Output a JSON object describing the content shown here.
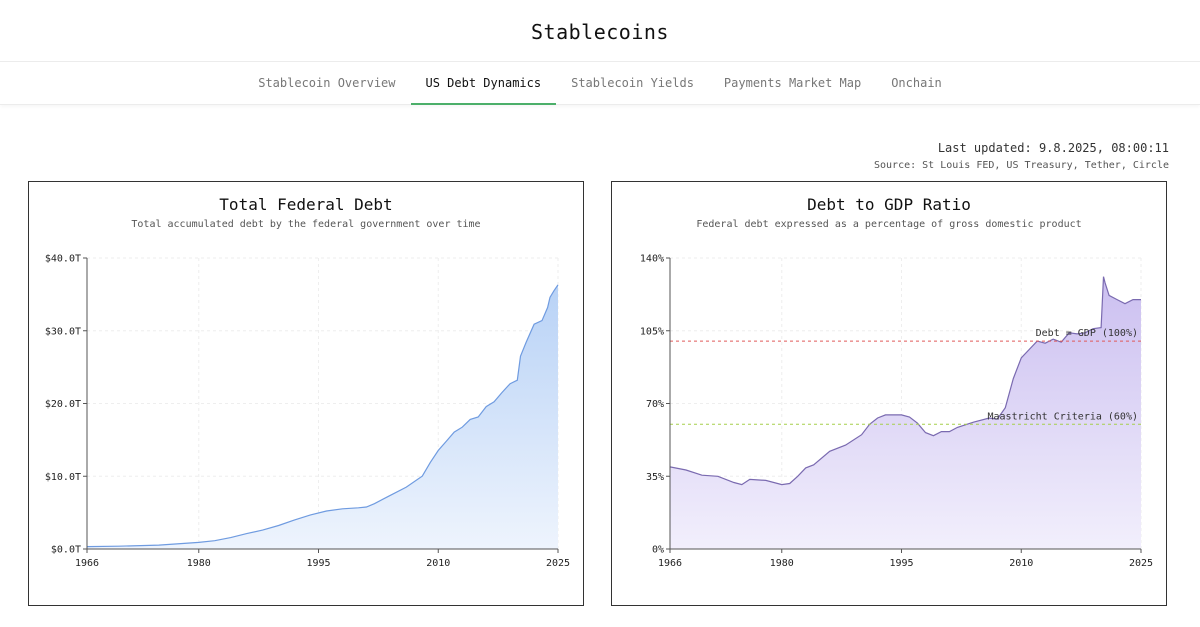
{
  "header": {
    "title": "Stablecoins"
  },
  "nav": {
    "tabs": [
      {
        "label": "Stablecoin Overview",
        "active": false
      },
      {
        "label": "US Debt Dynamics",
        "active": true
      },
      {
        "label": "Stablecoin Yields",
        "active": false
      },
      {
        "label": "Payments Market Map",
        "active": false
      },
      {
        "label": "Onchain",
        "active": false
      }
    ]
  },
  "meta": {
    "last_updated": "Last updated: 9.8.2025, 08:00:11",
    "source": "Source: St Louis FED, US Treasury, Tether, Circle"
  },
  "colors": {
    "accent_tab": "#4caf6a",
    "debt_line": "#6f9be0",
    "debt_fill_top": "#b8d2f6",
    "debt_fill_bottom": "#eef4fd",
    "ratio_line": "#7a6ab0",
    "ratio_fill_top": "#cbbff0",
    "ratio_fill_bottom": "#f2effc",
    "ref_debt_gdp": "#e05a5a",
    "ref_maastricht": "#a6cf4a"
  },
  "chart_data": [
    {
      "type": "area",
      "title": "Total Federal Debt",
      "subtitle": "Total accumulated debt by the federal government over time",
      "xlabel": "",
      "ylabel": "",
      "xlim": [
        1966,
        2025
      ],
      "ylim": [
        0,
        40
      ],
      "x_ticks": [
        "1966",
        "1980",
        "1995",
        "2010",
        "2025"
      ],
      "y_ticks": [
        "$0.0T",
        "$10.0T",
        "$20.0T",
        "$30.0T",
        "$40.0T"
      ],
      "grid": true,
      "series": [
        {
          "x": [
            1966,
            1970,
            1975,
            1980,
            1982,
            1984,
            1986,
            1988,
            1990,
            1992,
            1994,
            1996,
            1998,
            2000,
            2001,
            2002,
            2004,
            2006,
            2008,
            2009,
            2010,
            2011,
            2012,
            2013,
            2014,
            2015,
            2016,
            2017,
            2018,
            2019,
            2019.9,
            2020.3,
            2021,
            2022,
            2023,
            2023.7,
            2024,
            2024.5,
            2025
          ],
          "values": [
            0.33,
            0.38,
            0.54,
            0.91,
            1.14,
            1.57,
            2.12,
            2.6,
            3.23,
            4.0,
            4.69,
            5.22,
            5.53,
            5.67,
            5.77,
            6.23,
            7.38,
            8.51,
            10.02,
            11.91,
            13.56,
            14.79,
            16.07,
            16.74,
            17.82,
            18.15,
            19.57,
            20.24,
            21.52,
            22.72,
            23.2,
            26.5,
            28.4,
            30.9,
            31.4,
            33.2,
            34.6,
            35.5,
            36.3
          ]
        }
      ]
    },
    {
      "type": "area",
      "title": "Debt to GDP Ratio",
      "subtitle": "Federal debt expressed as a percentage of gross domestic product",
      "xlabel": "",
      "ylabel": "",
      "xlim": [
        1966,
        2025
      ],
      "ylim": [
        0,
        140
      ],
      "x_ticks": [
        "1966",
        "1980",
        "1995",
        "2010",
        "2025"
      ],
      "y_ticks": [
        "0%",
        "35%",
        "70%",
        "105%",
        "140%"
      ],
      "grid": true,
      "series": [
        {
          "x": [
            1966,
            1968,
            1970,
            1972,
            1974,
            1975,
            1976,
            1978,
            1980,
            1981,
            1982,
            1983,
            1984,
            1986,
            1988,
            1990,
            1991,
            1992,
            1993,
            1994,
            1995,
            1996,
            1997,
            1998,
            1999,
            2000,
            2001,
            2002,
            2004,
            2006,
            2007,
            2008,
            2009,
            2010,
            2011,
            2012,
            2013,
            2014,
            2015,
            2016,
            2017,
            2018,
            2019,
            2020,
            2020.3,
            2020.5,
            2021,
            2022,
            2023,
            2024,
            2025
          ],
          "values": [
            39.5,
            38,
            35.5,
            35,
            32,
            31,
            33.5,
            33,
            31,
            31.5,
            35,
            39,
            40.5,
            47,
            50,
            55,
            60,
            63,
            64.5,
            64.5,
            64.5,
            63.5,
            60.5,
            56,
            54.5,
            56.5,
            56.5,
            58.5,
            61,
            63,
            62.5,
            68,
            82,
            92,
            96,
            100,
            99,
            101,
            99.5,
            104,
            103.5,
            104,
            106,
            106.5,
            131,
            128,
            122,
            120,
            118,
            120,
            120
          ]
        }
      ],
      "reference_lines": [
        {
          "label": "Debt = GDP (100%)",
          "value": 100
        },
        {
          "label": "Maastricht Criteria (60%)",
          "value": 60
        }
      ]
    }
  ]
}
